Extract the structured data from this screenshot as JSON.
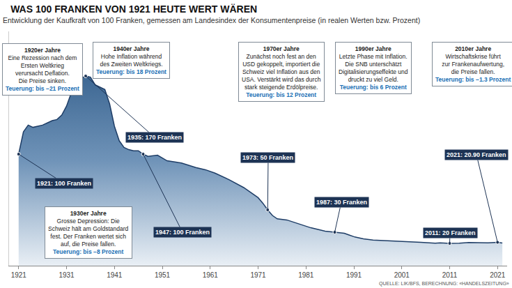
{
  "chart_data": {
    "type": "area",
    "title": "WAS 100 FRANKEN VON 1921 HEUTE WERT WÄREN",
    "subtitle": "Entwicklung der Kaufkraft von 100 Franken, gemessen am Landesindex der Konsumentenpreise (in realen Werten bzw. Prozent)",
    "source": "QUELLE: LIK/BFS, BERECHNUNG: «HANDELSZEITUNG»",
    "color": "#1e3d66",
    "x": [
      1921,
      1922,
      1923,
      1924,
      1925,
      1926,
      1927,
      1928,
      1929,
      1930,
      1931,
      1932,
      1933,
      1934,
      1935,
      1936,
      1937,
      1938,
      1939,
      1940,
      1941,
      1942,
      1943,
      1944,
      1945,
      1946,
      1947,
      1948,
      1950,
      1952,
      1955,
      1958,
      1960,
      1962,
      1965,
      1968,
      1970,
      1971,
      1972,
      1973,
      1974,
      1975,
      1977,
      1980,
      1982,
      1985,
      1987,
      1989,
      1990,
      1991,
      1992,
      1993,
      1995,
      1998,
      2000,
      2003,
      2005,
      2008,
      2009,
      2011,
      2013,
      2015,
      2017,
      2019,
      2021,
      2022
    ],
    "values": [
      100,
      120,
      126,
      124,
      125,
      126,
      128,
      130,
      131,
      135,
      143,
      155,
      163,
      168,
      170,
      169,
      162,
      160,
      158,
      145,
      125,
      112,
      106,
      104,
      103,
      103,
      100,
      98,
      99,
      94,
      92,
      88,
      86,
      83,
      77,
      70,
      64,
      61,
      56,
      50,
      45,
      42,
      41,
      37,
      34,
      31,
      30,
      29,
      27.5,
      26,
      25,
      24,
      23,
      22.5,
      22,
      21.3,
      21,
      20.2,
      20.4,
      20,
      20.1,
      20.8,
      20.6,
      20.5,
      20.9,
      20.3
    ],
    "xlim": [
      1919,
      2023
    ],
    "xticks": [
      1921,
      1931,
      1941,
      1951,
      1961,
      1971,
      1981,
      1991,
      2001,
      2011,
      2021
    ],
    "ylim": [
      0,
      210
    ],
    "yticks": [],
    "grid": false,
    "tick_labels": "x",
    "marker": "circle",
    "points": [
      {
        "x": 1921,
        "value": 100,
        "label": "1921: 100 Franken"
      },
      {
        "x": 1935,
        "value": 170,
        "label": "1935: 170 Franken"
      },
      {
        "x": 1947,
        "value": 100,
        "label": "1947: 100 Franken"
      },
      {
        "x": 1973,
        "value": 50,
        "label": "1973: 50 Franken"
      },
      {
        "x": 1987,
        "value": 30,
        "label": "1987: 30 Franken"
      },
      {
        "x": 2011,
        "value": 20,
        "label": "2011: 20 Franken"
      },
      {
        "x": 2021,
        "value": 20.9,
        "label": "2021: 20.90 Franken"
      }
    ],
    "annotations": [
      {
        "title": "1920er Jahre",
        "lines": [
          "Eine Rezession nach dem",
          "Ersten Weltkrieg",
          "verursacht Deflation.",
          "Die Preise sinken."
        ],
        "inflation": "Teuerung: bis −21 Prozent"
      },
      {
        "title": "1940er Jahre",
        "lines": [
          "Hohe Inflation während",
          "des Zweiten Weltkriegs."
        ],
        "inflation": "Teuerung: bis 18 Prozent"
      },
      {
        "title": "1970er Jahre",
        "lines": [
          "Zunächst noch fest an den",
          "USD gekoppelt, importiert die",
          "Schweiz viel Inflation aus den",
          "USA. Verstärkt wird das durch",
          "stark steigende Erdölpreise."
        ],
        "inflation": "Teuerung: bis 12 Prozent"
      },
      {
        "title": "1990er Jahre",
        "lines": [
          "Letzte Phase mit Inflation.",
          "Die SNB unterschätzt",
          "Digitalisierungseffekte und",
          "druckt zu viel Geld."
        ],
        "inflation": "Teuerung: bis 6 Prozent"
      },
      {
        "title": "2010er Jahre",
        "lines": [
          "Wirtschaftskrise führt",
          "zur Frankenaufwertung,",
          "die Preise fallen."
        ],
        "inflation": "Teuerung: bis −1.3 Prozent"
      },
      {
        "title": "1930er Jahre",
        "lines": [
          "Grosse Depression: Die",
          "Schweiz hält am Goldstandard",
          "fest. Der Franken wertet sich",
          "auf, die Preise fallen."
        ],
        "inflation": "Teuerung: bis −8 Prozent"
      }
    ]
  }
}
